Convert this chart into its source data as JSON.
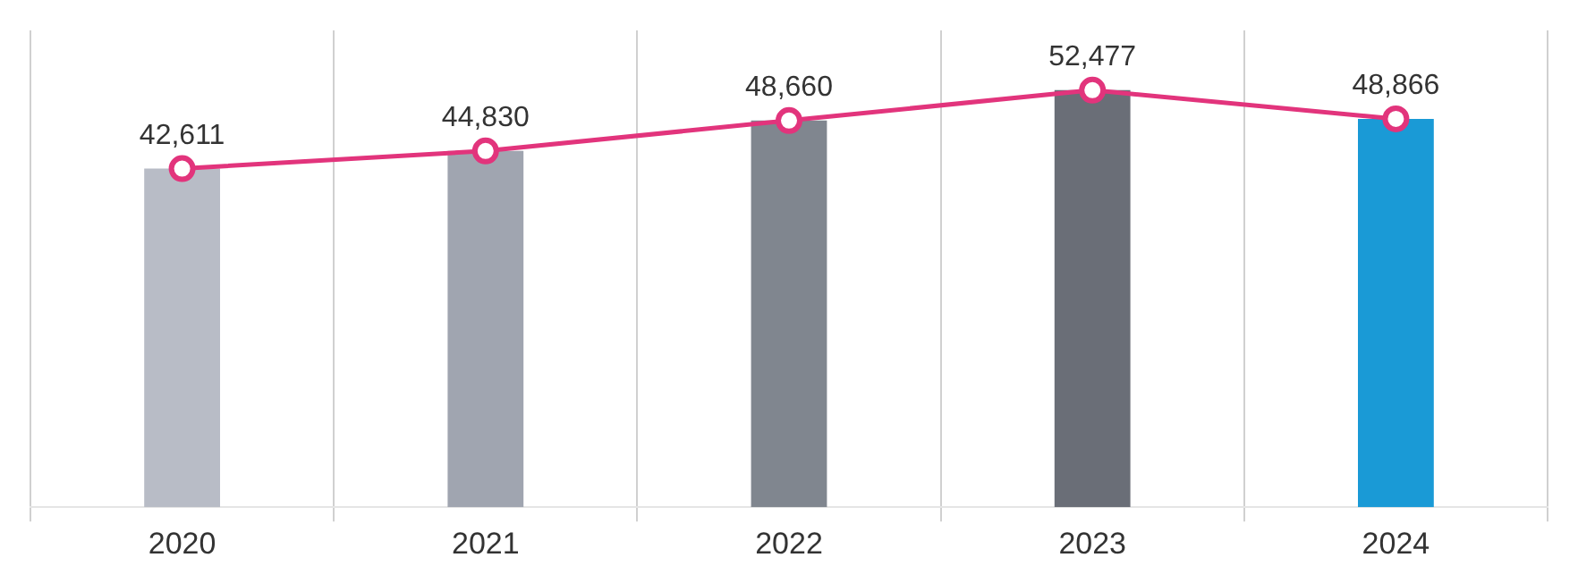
{
  "chart_data": {
    "type": "line",
    "categories": [
      "2020",
      "2021",
      "2022",
      "2023",
      "2024"
    ],
    "series": [
      {
        "type": "bar",
        "colors": [
          "#b8bcc6",
          "#a0a5b0",
          "#80868f",
          "#6a6e77",
          "#1a9ad6"
        ],
        "values": [
          42611,
          44830,
          48660,
          52477,
          48866
        ]
      },
      {
        "color": "#e2347c",
        "values": [
          42611,
          44830,
          48660,
          52477,
          48866
        ],
        "value_labels": [
          "42,611",
          "44,830",
          "48,660",
          "52,477",
          "48,866"
        ]
      }
    ],
    "tick_labels": "x",
    "grid": true,
    "marker": "circle",
    "line_style": "solid",
    "legend": false
  }
}
